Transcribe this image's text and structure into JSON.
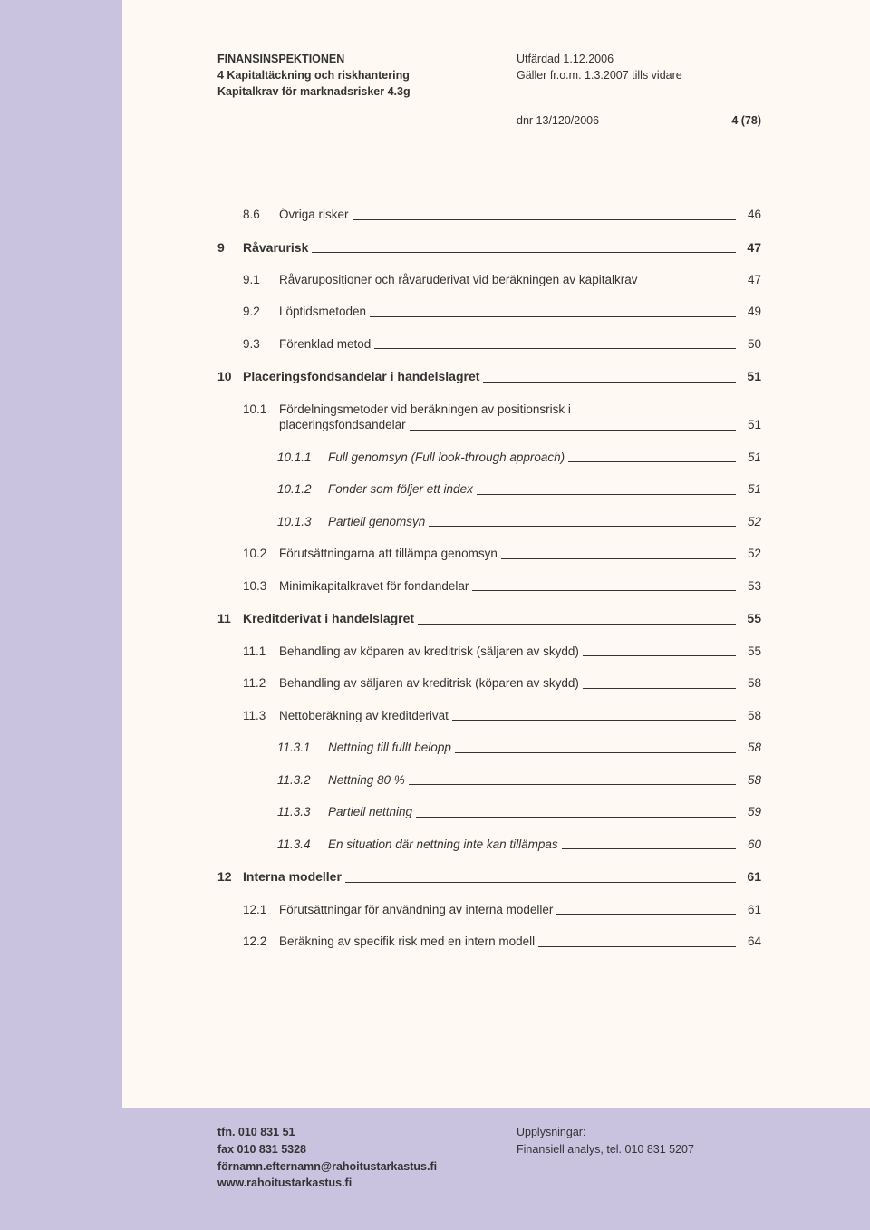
{
  "header": {
    "org": "FINANSINSPEKTIONEN",
    "issued": "Utfärdad 1.12.2006",
    "section": "4 Kapitaltäckning och riskhantering",
    "valid": "Gäller fr.o.m. 1.3.2007 tills vidare",
    "subsection": "Kapitalkrav för marknadsrisker 4.3g",
    "dnr": "dnr 13/120/2006",
    "page": "4 (78)"
  },
  "toc": [
    {
      "level": "h2",
      "num": "8.6",
      "title": "Övriga risker",
      "page": "46"
    },
    {
      "level": "h1",
      "num": "9",
      "title": "Råvarurisk",
      "page": "47"
    },
    {
      "level": "h2",
      "num": "9.1",
      "title": "Råvarupositioner och råvaruderivat vid beräkningen av kapitalkrav",
      "page": "47",
      "noLeader": true
    },
    {
      "level": "h2",
      "num": "9.2",
      "title": "Löptidsmetoden",
      "page": "49"
    },
    {
      "level": "h2",
      "num": "9.3",
      "title": "Förenklad metod",
      "page": "50"
    },
    {
      "level": "h1",
      "num": "10",
      "title": "Placeringsfondsandelar i handelslagret",
      "page": "51"
    },
    {
      "level": "h2ml",
      "num": "10.1",
      "title1": "Fördelningsmetoder vid beräkningen av positionsrisk i",
      "title2": "placeringsfondsandelar",
      "page": "51"
    },
    {
      "level": "h3",
      "num": "10.1.1",
      "title": "Full genomsyn (Full look-through approach)",
      "page": "51"
    },
    {
      "level": "h3",
      "num": "10.1.2",
      "title": "Fonder som följer ett index",
      "page": "51"
    },
    {
      "level": "h3",
      "num": "10.1.3",
      "title": "Partiell genomsyn",
      "page": "52"
    },
    {
      "level": "h2",
      "num": "10.2",
      "title": "Förutsättningarna att tillämpa genomsyn",
      "page": "52"
    },
    {
      "level": "h2",
      "num": "10.3",
      "title": "Minimikapitalkravet för fondandelar",
      "page": "53"
    },
    {
      "level": "h1",
      "num": "11",
      "title": "Kreditderivat i handelslagret",
      "page": "55"
    },
    {
      "level": "h2",
      "num": "11.1",
      "title": "Behandling av köparen av kreditrisk (säljaren av skydd)",
      "page": "55"
    },
    {
      "level": "h2",
      "num": "11.2",
      "title": "Behandling av säljaren av kreditrisk (köparen av skydd)",
      "page": "58"
    },
    {
      "level": "h2",
      "num": "11.3",
      "title": "Nettoberäkning av kreditderivat",
      "page": "58"
    },
    {
      "level": "h3",
      "num": "11.3.1",
      "title": "Nettning till fullt belopp",
      "page": "58"
    },
    {
      "level": "h3",
      "num": "11.3.2",
      "title": "Nettning 80 %",
      "page": "58"
    },
    {
      "level": "h3",
      "num": "11.3.3",
      "title": "Partiell nettning",
      "page": "59"
    },
    {
      "level": "h3",
      "num": "11.3.4",
      "title": "En situation där nettning inte kan tillämpas",
      "page": "60"
    },
    {
      "level": "h1",
      "num": "12",
      "title": "Interna modeller",
      "page": "61"
    },
    {
      "level": "h2",
      "num": "12.1",
      "title": "Förutsättningar för användning av interna modeller",
      "page": "61"
    },
    {
      "level": "h2",
      "num": "12.2",
      "title": "Beräkning av specifik risk med en intern modell",
      "page": "64"
    }
  ],
  "footer": {
    "phone": "tfn. 010 831 51",
    "fax": "fax 010 831 5328",
    "email": "förnamn.efternamn@rahoitustarkastus.fi",
    "web": "www.rahoitustarkastus.fi",
    "info_label": "Upplysningar:",
    "info_text": "Finansiell analys, tel. 010 831 5207"
  }
}
